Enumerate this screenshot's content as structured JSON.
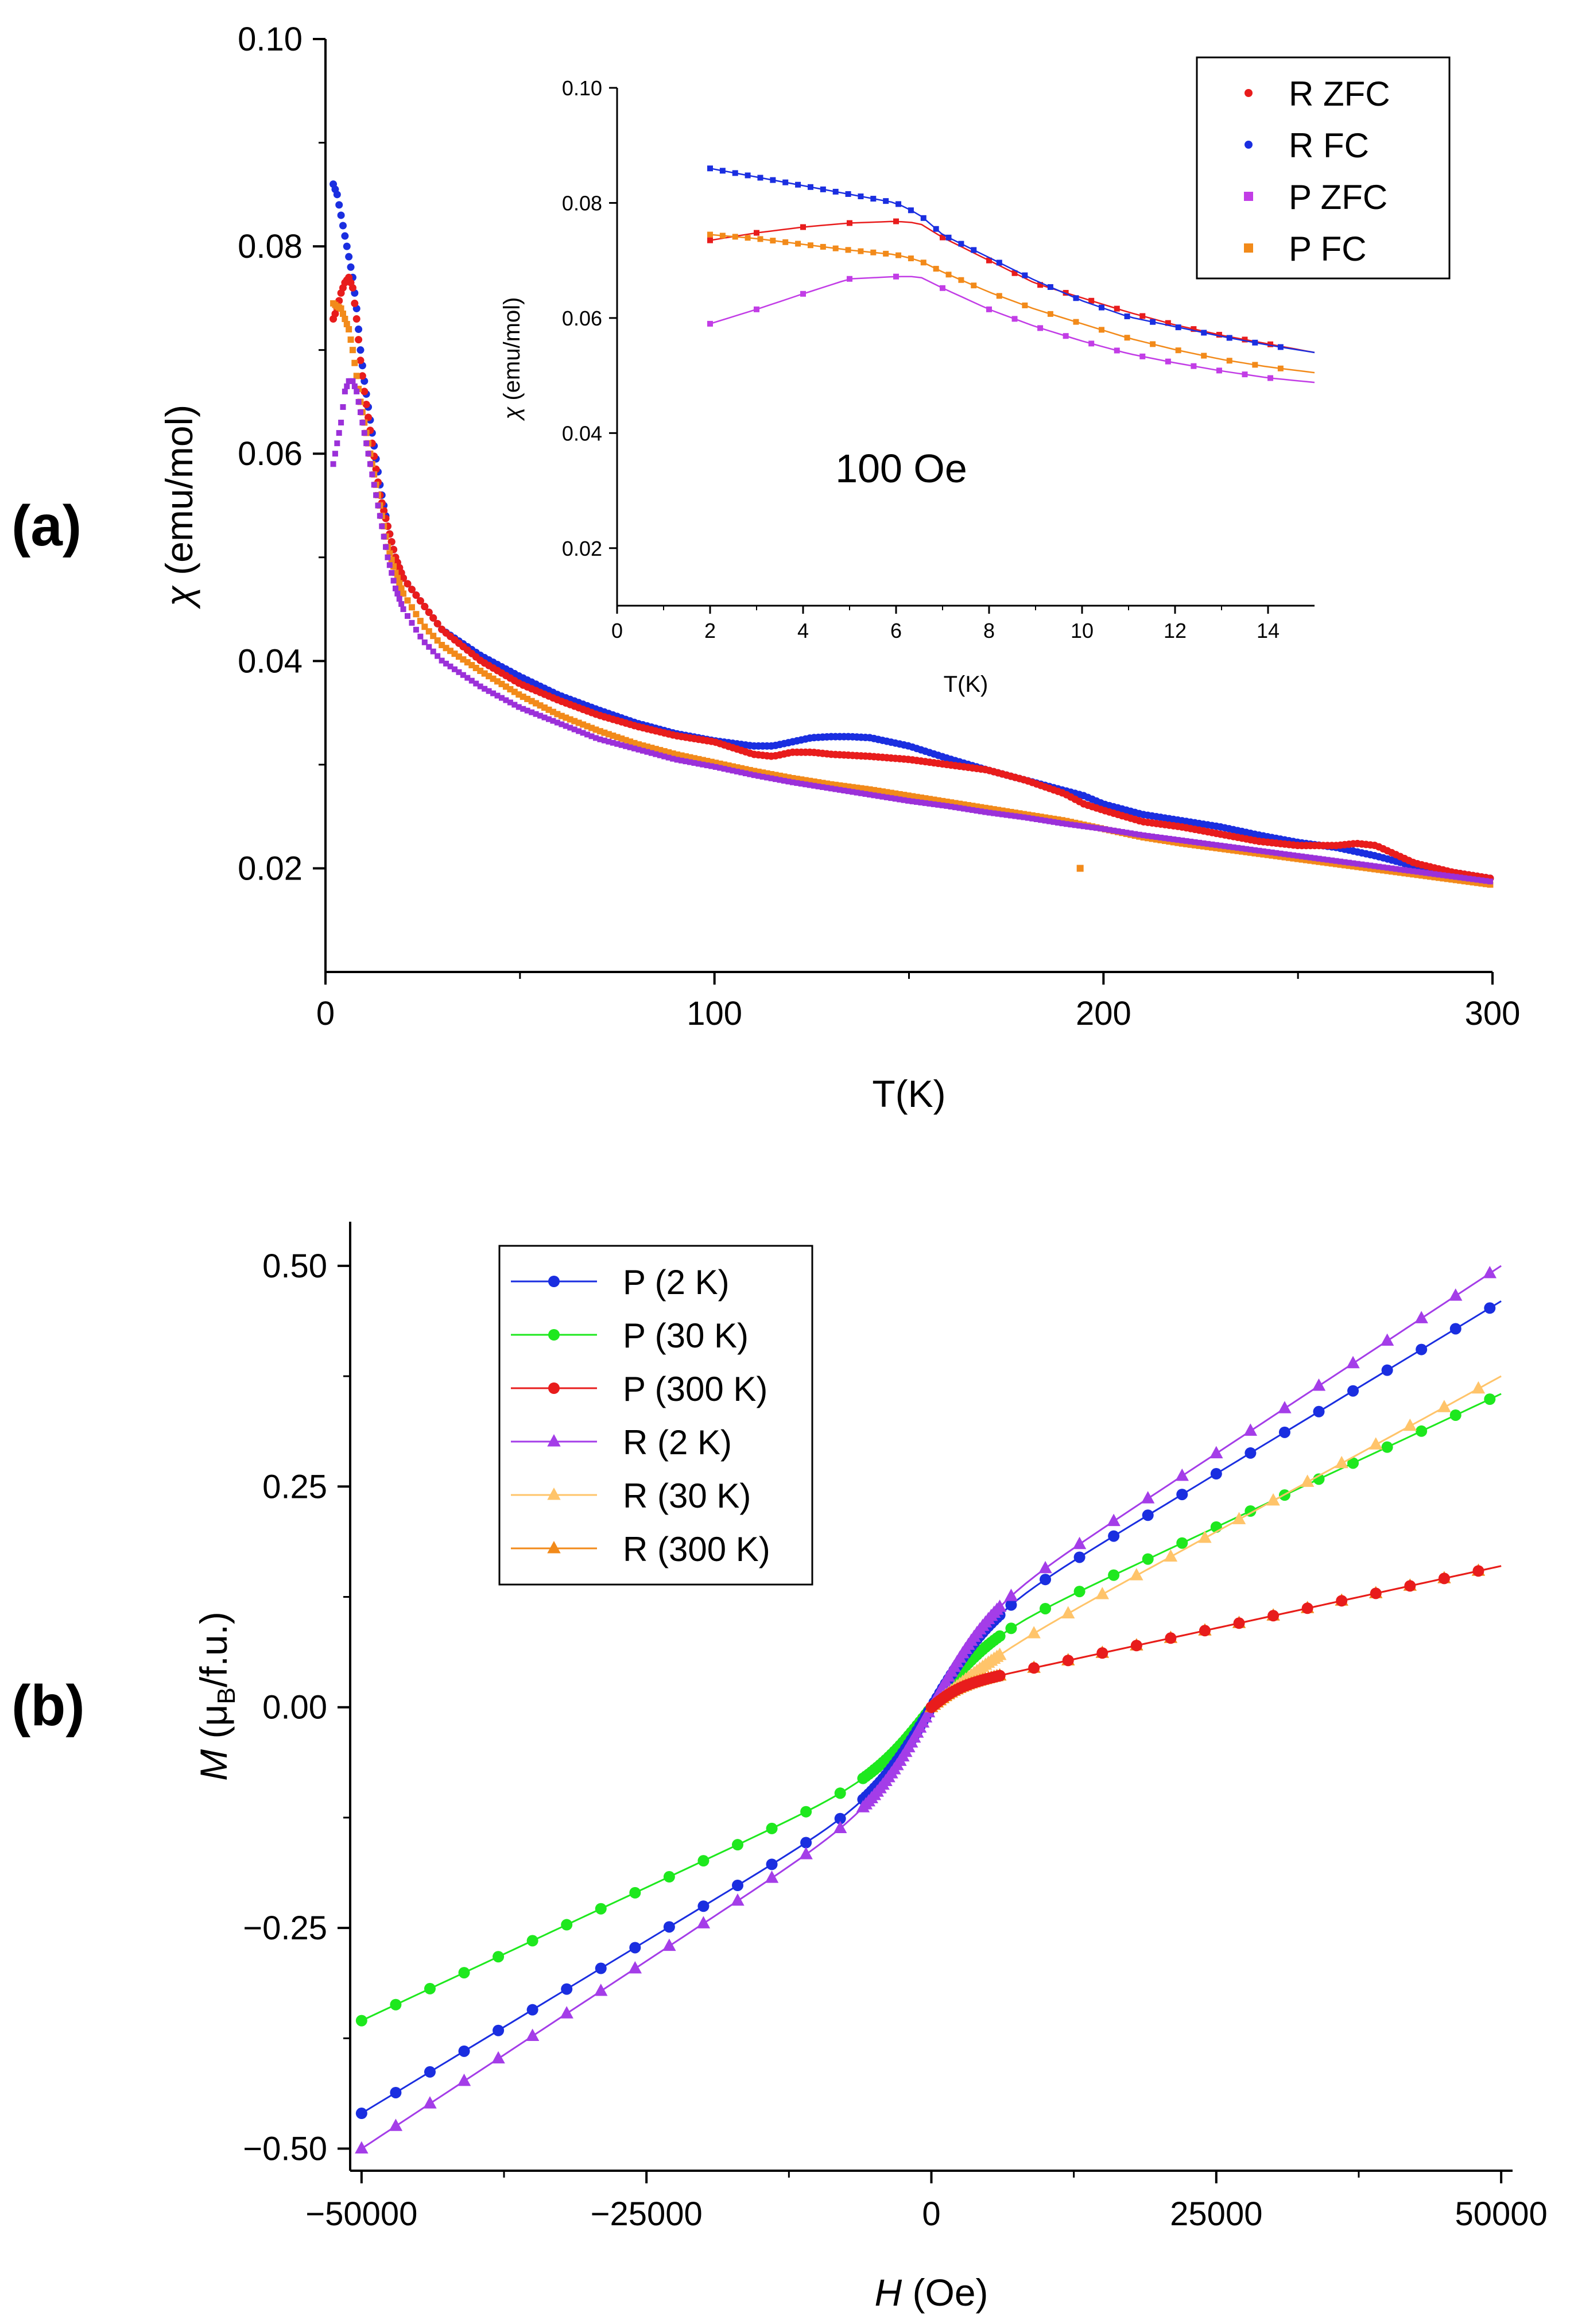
{
  "panels": [
    {
      "label": "(a)"
    },
    {
      "label": "(b)"
    }
  ],
  "chart_data": [
    {
      "id": "main-a",
      "type": "scatter",
      "panel": "(a)",
      "xlabel": "T(K)",
      "ylabel_symbol": "χ",
      "ylabel_unit": "(emu/mol)",
      "xlim": [
        0,
        300
      ],
      "ylim": [
        0.01,
        0.1
      ],
      "xticks": [
        0,
        100,
        200,
        300
      ],
      "xtick_labels": [
        "0",
        "100",
        "200",
        "300"
      ],
      "yticks": [
        0.02,
        0.04,
        0.06,
        0.08,
        0.1
      ],
      "ytick_labels": [
        "0.02",
        "0.04",
        "0.06",
        "0.08",
        "0.10"
      ],
      "series": [
        {
          "name": "P ZFC",
          "color": "#9b30d9",
          "x": [
            2,
            3,
            4,
            5,
            6,
            7,
            8,
            9,
            10,
            12,
            14,
            16,
            18,
            20,
            25,
            30,
            40,
            50,
            60,
            70,
            80,
            90,
            100,
            110,
            120,
            130,
            140,
            150,
            160,
            170,
            180,
            190,
            200,
            210,
            220,
            230,
            240,
            250,
            260,
            270,
            280,
            290,
            300
          ],
          "y": [
            0.059,
            0.061,
            0.063,
            0.066,
            0.067,
            0.067,
            0.066,
            0.064,
            0.062,
            0.058,
            0.054,
            0.05,
            0.047,
            0.045,
            0.042,
            0.04,
            0.0375,
            0.0355,
            0.034,
            0.0325,
            0.0315,
            0.0305,
            0.0298,
            0.029,
            0.0283,
            0.0277,
            0.0271,
            0.0265,
            0.026,
            0.0254,
            0.0249,
            0.0243,
            0.0238,
            0.0232,
            0.0227,
            0.0222,
            0.0217,
            0.0212,
            0.0207,
            0.0202,
            0.0197,
            0.0192,
            0.0187
          ]
        },
        {
          "name": "P FC",
          "color": "#f28a1a",
          "x": [
            2,
            3,
            4,
            5,
            6,
            7,
            8,
            9,
            10,
            12,
            14,
            16,
            18,
            20,
            25,
            30,
            40,
            50,
            60,
            70,
            80,
            90,
            100,
            110,
            120,
            130,
            140,
            150,
            160,
            170,
            180,
            190,
            200,
            210,
            220,
            230,
            240,
            250,
            260,
            270,
            280,
            290,
            300
          ],
          "y": [
            0.0745,
            0.0742,
            0.074,
            0.073,
            0.072,
            0.07,
            0.0675,
            0.065,
            0.063,
            0.059,
            0.055,
            0.051,
            0.0485,
            0.0465,
            0.0435,
            0.0415,
            0.039,
            0.0367,
            0.0348,
            0.0333,
            0.032,
            0.031,
            0.0302,
            0.0294,
            0.0287,
            0.0281,
            0.0276,
            0.027,
            0.0264,
            0.0258,
            0.0252,
            0.0246,
            0.0238,
            0.023,
            0.0224,
            0.0219,
            0.0214,
            0.0209,
            0.0204,
            0.0199,
            0.0194,
            0.0189,
            0.0184
          ]
        },
        {
          "name": "R ZFC",
          "color": "#e81c1c",
          "x": [
            2,
            3,
            4,
            5,
            6,
            7,
            8,
            9,
            10,
            12,
            14,
            16,
            18,
            20,
            25,
            30,
            40,
            50,
            60,
            70,
            80,
            90,
            100,
            110,
            115,
            120,
            125,
            130,
            140,
            150,
            160,
            170,
            180,
            190,
            195,
            200,
            210,
            220,
            230,
            240,
            250,
            260,
            265,
            270,
            280,
            290,
            300
          ],
          "y": [
            0.073,
            0.074,
            0.0755,
            0.0765,
            0.077,
            0.076,
            0.073,
            0.069,
            0.066,
            0.061,
            0.056,
            0.053,
            0.05,
            0.048,
            0.0455,
            0.043,
            0.04,
            0.0378,
            0.0362,
            0.0348,
            0.0337,
            0.0328,
            0.0322,
            0.031,
            0.0308,
            0.0312,
            0.0312,
            0.031,
            0.0308,
            0.0305,
            0.03,
            0.0295,
            0.0285,
            0.0272,
            0.0262,
            0.0256,
            0.0245,
            0.024,
            0.0233,
            0.0226,
            0.0222,
            0.0222,
            0.0224,
            0.0222,
            0.0205,
            0.0196,
            0.019
          ]
        },
        {
          "name": "R FC",
          "color": "#1a2ee0",
          "x": [
            2,
            3,
            4,
            5,
            6,
            7,
            8,
            9,
            10,
            12,
            14,
            16,
            18,
            20,
            25,
            30,
            40,
            50,
            60,
            70,
            80,
            90,
            100,
            110,
            115,
            120,
            125,
            130,
            135,
            140,
            150,
            160,
            170,
            180,
            190,
            195,
            200,
            210,
            220,
            230,
            240,
            250,
            260,
            270,
            280,
            290,
            300
          ],
          "y": [
            0.086,
            0.085,
            0.083,
            0.081,
            0.079,
            0.077,
            0.074,
            0.07,
            0.067,
            0.062,
            0.057,
            0.053,
            0.05,
            0.048,
            0.0455,
            0.043,
            0.0405,
            0.0385,
            0.0367,
            0.0353,
            0.034,
            0.033,
            0.0323,
            0.0318,
            0.0318,
            0.0322,
            0.0326,
            0.0327,
            0.0327,
            0.0326,
            0.0318,
            0.0306,
            0.0295,
            0.0285,
            0.0275,
            0.027,
            0.0262,
            0.0252,
            0.0246,
            0.024,
            0.0232,
            0.0225,
            0.022,
            0.0212,
            0.0202,
            0.0196,
            0.019
          ]
        }
      ],
      "outliers": [
        {
          "series": "P FC",
          "x": 194,
          "y": 0.02
        }
      ]
    },
    {
      "id": "inset-a",
      "type": "line",
      "panel": "(a) inset",
      "annotation": "100 Oe",
      "xlabel": "T(K)",
      "ylabel_symbol": "χ",
      "ylabel_unit": "(emu/mol)",
      "xlim": [
        0,
        15
      ],
      "ylim": [
        0.01,
        0.1
      ],
      "xticks": [
        0,
        2,
        4,
        6,
        8,
        10,
        12,
        14
      ],
      "xtick_labels": [
        "0",
        "2",
        "4",
        "6",
        "8",
        "10",
        "12",
        "14"
      ],
      "yticks": [
        0.02,
        0.04,
        0.06,
        0.08,
        0.1
      ],
      "ytick_labels": [
        "0.02",
        "0.04",
        "0.06",
        "0.08",
        "0.10"
      ],
      "x": [
        2,
        3,
        4,
        5,
        6,
        6.5,
        7,
        8,
        9,
        10,
        11,
        12,
        13,
        14,
        15
      ],
      "series": [
        {
          "name": "R ZFC",
          "color": "#e81c1c",
          "values": [
            0.0735,
            0.0748,
            0.0758,
            0.0765,
            0.0768,
            0.0765,
            0.074,
            0.07,
            0.066,
            0.0635,
            0.061,
            0.0588,
            0.057,
            0.0555,
            0.054
          ]
        },
        {
          "name": "R FC",
          "color": "#1a2ee0",
          "values": [
            0.086,
            0.0845,
            0.083,
            0.0815,
            0.08,
            0.078,
            0.0745,
            0.0705,
            0.0665,
            0.063,
            0.0602,
            0.0585,
            0.0568,
            0.0553,
            0.054
          ]
        },
        {
          "name": "P ZFC",
          "color": "#c23de6",
          "values": [
            0.059,
            0.0615,
            0.0642,
            0.0668,
            0.0672,
            0.0672,
            0.0652,
            0.0615,
            0.0585,
            0.056,
            0.0538,
            0.0522,
            0.0508,
            0.0496,
            0.0488
          ]
        },
        {
          "name": "P FC",
          "color": "#f28a1a",
          "values": [
            0.0745,
            0.0738,
            0.0728,
            0.0718,
            0.071,
            0.07,
            0.068,
            0.0645,
            0.0615,
            0.059,
            0.0565,
            0.0545,
            0.0528,
            0.0515,
            0.0505
          ]
        }
      ]
    },
    {
      "id": "main-b",
      "type": "line",
      "panel": "(b)",
      "xlabel_symbol": "H",
      "xlabel_unit": "(Oe)",
      "ylabel_symbol": "M",
      "ylabel_unit_parts": [
        "(μ",
        "B",
        "/f.u.)"
      ],
      "xlim": [
        -51000,
        51000
      ],
      "ylim": [
        -0.525,
        0.55
      ],
      "xticks": [
        -50000,
        -25000,
        0,
        25000,
        50000
      ],
      "xtick_labels": [
        "−50000",
        "−25000",
        "0",
        "25000",
        "50000"
      ],
      "yticks": [
        -0.5,
        -0.25,
        0,
        0.25,
        0.5
      ],
      "ytick_labels": [
        "−0.50",
        "−0.25",
        "0.00",
        "0.25",
        "0.50"
      ],
      "series": [
        {
          "name": "P (2 K)",
          "color": "#1a2ee0",
          "marker": "circle",
          "x_min": -50000,
          "x_max": 50000,
          "m_min": -0.46,
          "m_max": 0.46
        },
        {
          "name": "P (30 K)",
          "color": "#1ee81e",
          "marker": "circle",
          "x_min": -50000,
          "x_max": 50000,
          "m_min": -0.355,
          "m_max": 0.355
        },
        {
          "name": "P (300 K)",
          "color": "#e81c1c",
          "marker": "circle",
          "x_min": 0,
          "x_max": 50000,
          "m_min": 0,
          "m_max": 0.16
        },
        {
          "name": "R (2 K)",
          "color": "#a43de8",
          "marker": "triangle",
          "x_min": -50000,
          "x_max": 50000,
          "m_min": -0.5,
          "m_max": 0.5
        },
        {
          "name": "R (30 K)",
          "color": "#ffc46a",
          "marker": "triangle",
          "x_min": 0,
          "x_max": 50000,
          "m_min": 0,
          "m_max": 0.375
        },
        {
          "name": "R (300 K)",
          "color": "#f28a1a",
          "marker": "triangle",
          "x_min": 0,
          "x_max": 50000,
          "m_min": 0,
          "m_max": 0.16
        }
      ]
    }
  ]
}
